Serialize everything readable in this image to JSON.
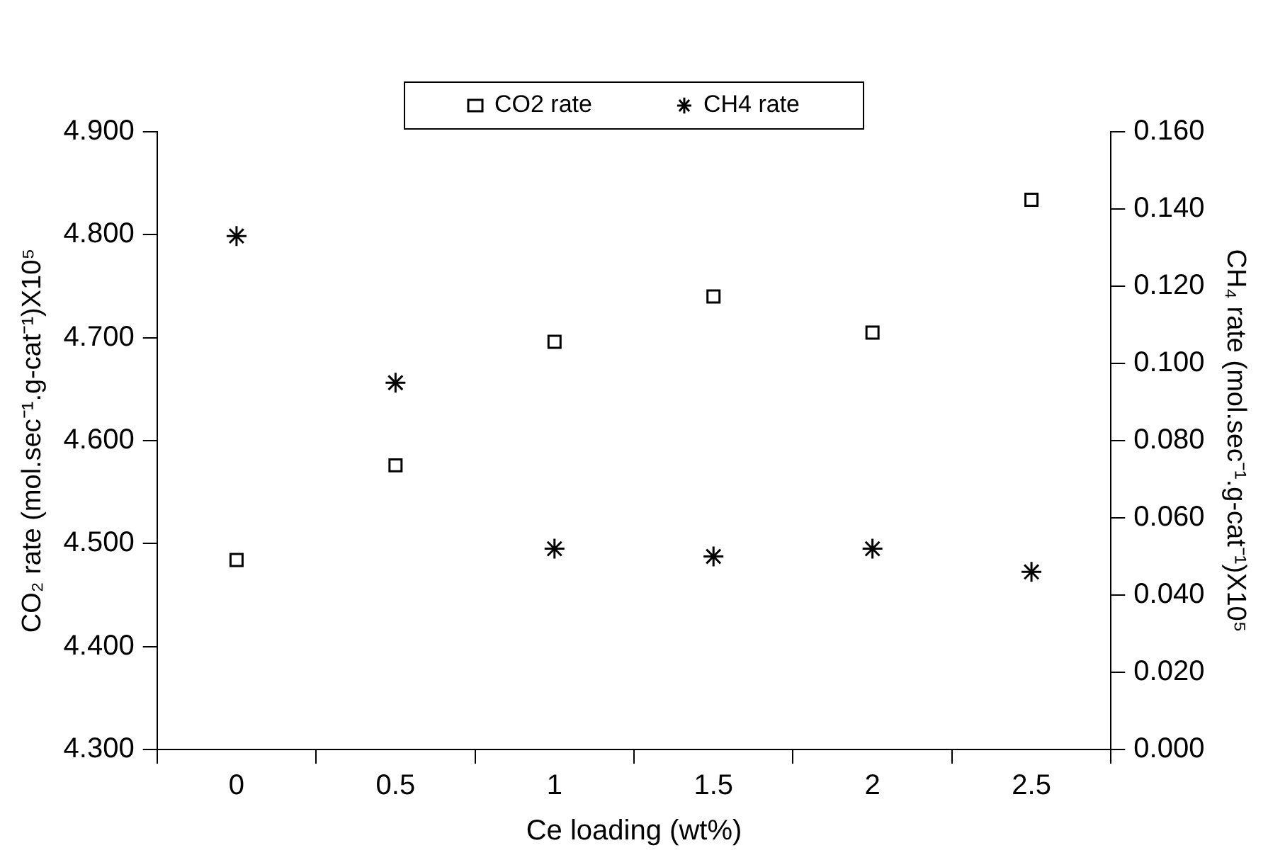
{
  "chart_data": {
    "type": "scatter",
    "xlabel": "Ce loading (wt%)",
    "ylabel": "CO₂ rate (mol.sec⁻¹.g-cat⁻¹)X10⁵",
    "y2label": "CH₄ rate (mol.sec⁻¹.g-cat⁻¹)X10⁵",
    "categories": [
      "0",
      "0.5",
      "1",
      "1.5",
      "2",
      "2.5"
    ],
    "series": [
      {
        "name": "CO2 rate",
        "color": "#000000",
        "marker": "square",
        "values": [
          4.484,
          4.576,
          4.696,
          4.74,
          4.705,
          4.834
        ]
      },
      {
        "name": "CH4 rate",
        "color": "#000000",
        "marker": "cross",
        "axis": "y2",
        "values": [
          0.133,
          0.095,
          0.052,
          0.05,
          0.052,
          0.046
        ]
      }
    ],
    "ylim": [
      4.3,
      4.9
    ],
    "yticks": [
      {
        "value": 4.3,
        "label": "4.300"
      },
      {
        "value": 4.4,
        "label": "4.400"
      },
      {
        "value": 4.5,
        "label": "4.500"
      },
      {
        "value": 4.6,
        "label": "4.600"
      },
      {
        "value": 4.7,
        "label": "4.700"
      },
      {
        "value": 4.8,
        "label": "4.800"
      },
      {
        "value": 4.9,
        "label": "4.900"
      }
    ],
    "y2lim": [
      0,
      0.16
    ],
    "y2ticks": [
      {
        "value": 0,
        "label": "0.000"
      },
      {
        "value": 0.02,
        "label": "0.020"
      },
      {
        "value": 0.04,
        "label": "0.040"
      },
      {
        "value": 0.06,
        "label": "0.060"
      },
      {
        "value": 0.08,
        "label": "0.080"
      },
      {
        "value": 0.1,
        "label": "0.100"
      },
      {
        "value": 0.12,
        "label": "0.120"
      },
      {
        "value": 0.14,
        "label": "0.140"
      },
      {
        "value": 0.16,
        "label": "0.160"
      }
    ],
    "grid": false,
    "legend": "top"
  }
}
